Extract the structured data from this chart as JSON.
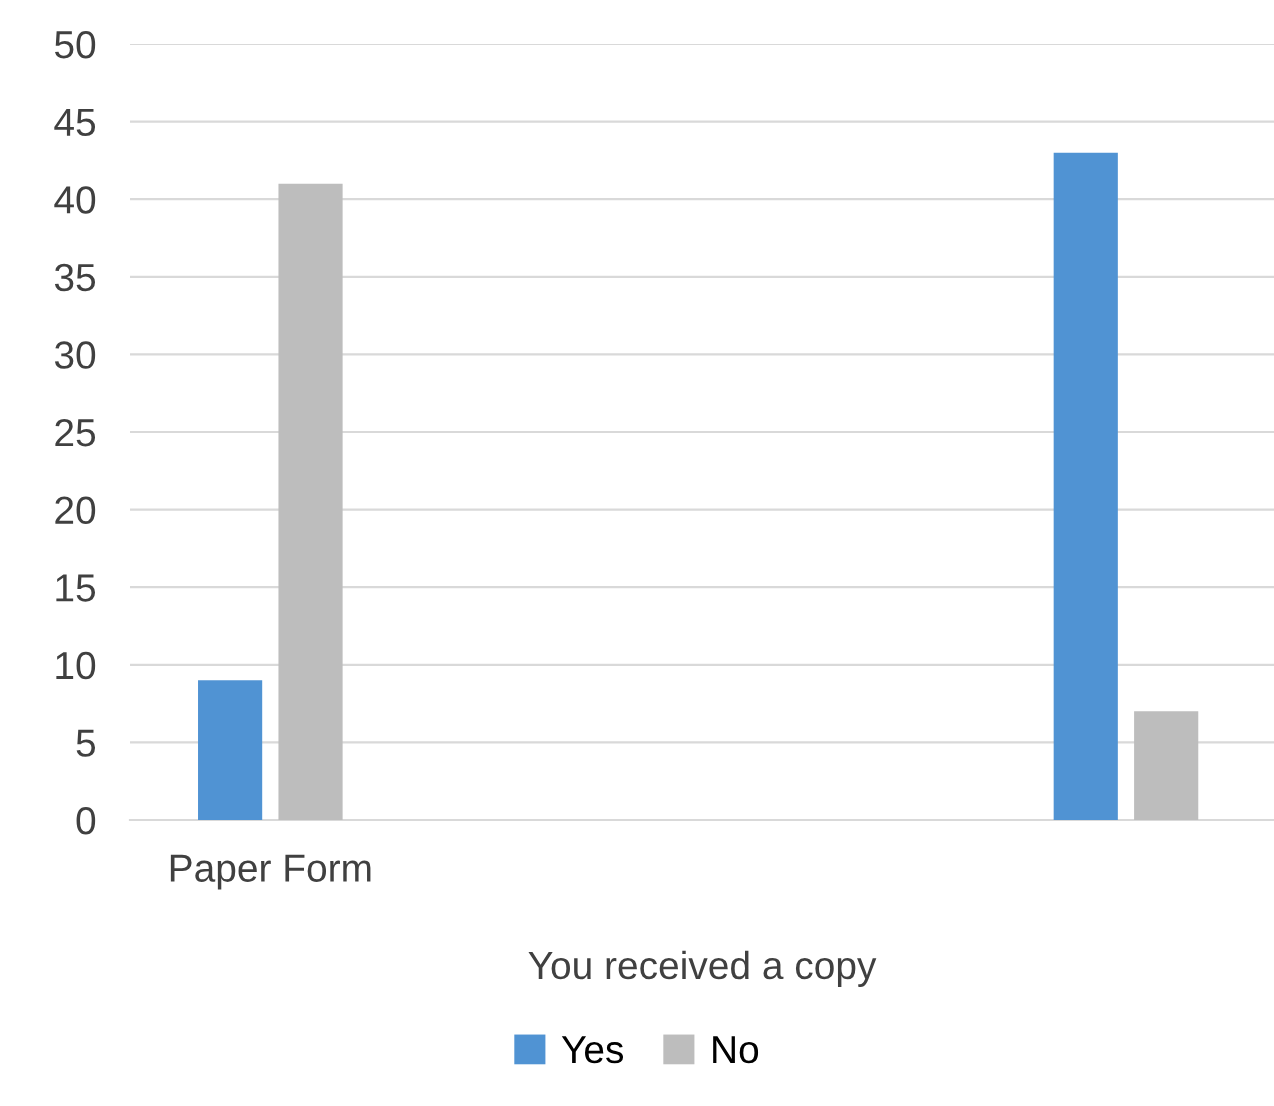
{
  "chart_data": {
    "type": "bar",
    "xlabel": "You received a copy",
    "categories": [
      "Paper Form",
      null
    ],
    "series": [
      {
        "name": "Yes",
        "color": "#5093d3",
        "values": [
          9,
          43
        ]
      },
      {
        "name": "No",
        "color": "#bdbdbd",
        "values": [
          41,
          7
        ]
      }
    ],
    "ylim": [
      0,
      50
    ],
    "yticks": [
      0,
      5,
      10,
      15,
      20,
      25,
      30,
      35,
      40,
      45,
      50
    ],
    "grid": "y",
    "legend": "bottom"
  }
}
